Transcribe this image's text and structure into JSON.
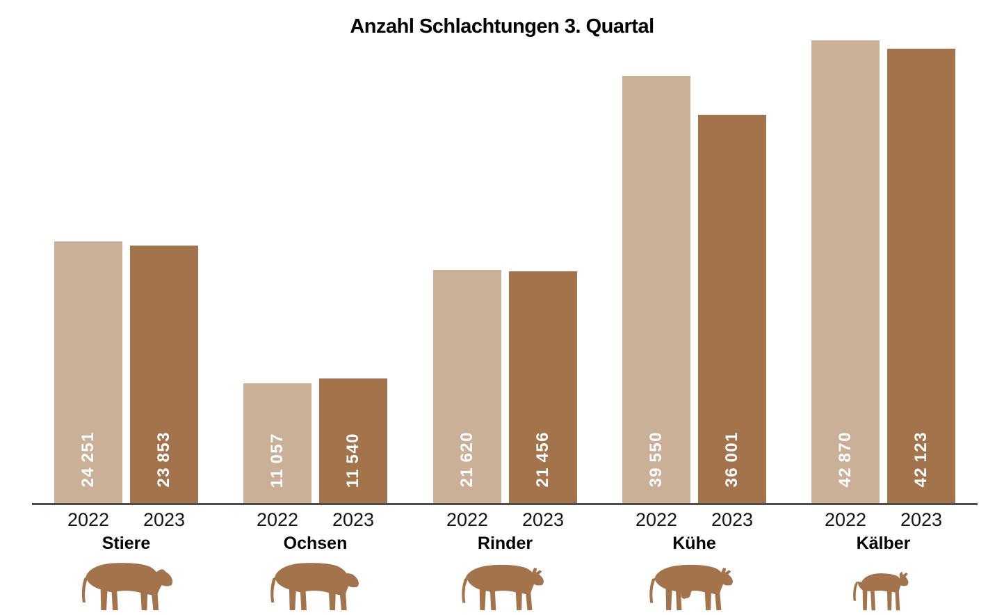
{
  "title": "Anzahl Schlachtungen 3. Quartal",
  "colors": {
    "bar_2022": "#c9b096",
    "bar_2023": "#a3744c",
    "icon": "#a3744c",
    "axis_line": "#4d4d4d",
    "value_label": "#ffffff",
    "text": "#000000"
  },
  "chart_data": {
    "type": "bar",
    "title": "Anzahl Schlachtungen 3. Quartal",
    "categories": [
      "Stiere",
      "Ochsen",
      "Rinder",
      "Kühe",
      "Kälber"
    ],
    "series": [
      {
        "name": "2022",
        "values": [
          24251,
          11057,
          21620,
          39550,
          42870
        ],
        "value_labels": [
          "24 251",
          "11 057",
          "21 620",
          "39 550",
          "42 870"
        ]
      },
      {
        "name": "2023",
        "values": [
          23853,
          11540,
          21456,
          36001,
          42123
        ],
        "value_labels": [
          "23 853",
          "11 540",
          "21 456",
          "36 001",
          "42 123"
        ]
      }
    ],
    "ylim": [
      0,
      42870
    ],
    "grid": false,
    "legend": "none",
    "y_axis_visible": false,
    "value_label_position": "inside-bottom-rotated-90ccw",
    "category_icons": [
      "bull-icon",
      "ox-icon",
      "heifer-icon",
      "cow-icon",
      "calf-icon"
    ]
  }
}
